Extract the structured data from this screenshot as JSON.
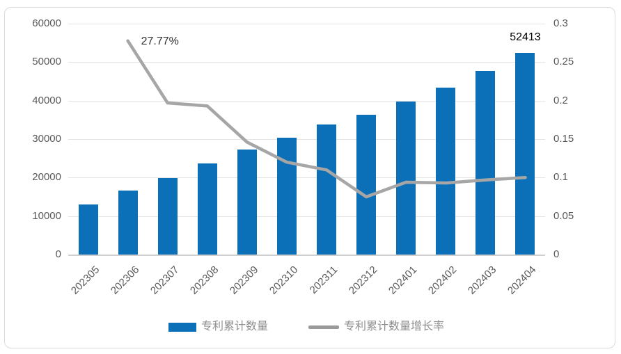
{
  "chart_data": {
    "type": "bar",
    "subtype": "combo-bar-line-dual-axis",
    "categories": [
      "202305",
      "202306",
      "202307",
      "202308",
      "202309",
      "202310",
      "202311",
      "202312",
      "202401",
      "202402",
      "202403",
      "202404"
    ],
    "series": [
      {
        "name": "专利累计数量",
        "type": "bar",
        "axis": "left",
        "color": "#0c70b8",
        "values": [
          13000,
          16610,
          19890,
          23730,
          27200,
          30450,
          33800,
          36330,
          39750,
          43450,
          47650,
          52413
        ]
      },
      {
        "name": "专利累计数量增长率",
        "type": "line",
        "axis": "right",
        "color": "#a6a6a6",
        "values": [
          null,
          0.2777,
          0.197,
          0.193,
          0.146,
          0.12,
          0.11,
          0.075,
          0.094,
          0.093,
          0.097,
          0.1
        ]
      }
    ],
    "left_axis": {
      "min": 0,
      "max": 60000,
      "step": 10000,
      "ticks": [
        "0",
        "10000",
        "20000",
        "30000",
        "40000",
        "50000",
        "60000"
      ]
    },
    "right_axis": {
      "min": 0,
      "max": 0.3,
      "step": 0.05,
      "ticks": [
        "0",
        "0.05",
        "0.1",
        "0.15",
        "0.2",
        "0.25",
        "0.3"
      ]
    },
    "annotations": [
      {
        "text": "27.77%",
        "series": "专利累计数量增长率",
        "category": "202306",
        "value": 0.2777
      },
      {
        "text": "52413",
        "series": "专利累计数量",
        "category": "202404",
        "value": 52413
      }
    ],
    "legend_position": "bottom",
    "grid": true,
    "title": "",
    "xlabel": "",
    "ylabel": ""
  },
  "colors": {
    "bar": "#0c70b8",
    "line": "#a6a6a6",
    "gridline": "#e4e4e4",
    "axis_text": "#595959",
    "legend_text": "#8f8f8f",
    "frame_border": "#d9d9d9"
  }
}
